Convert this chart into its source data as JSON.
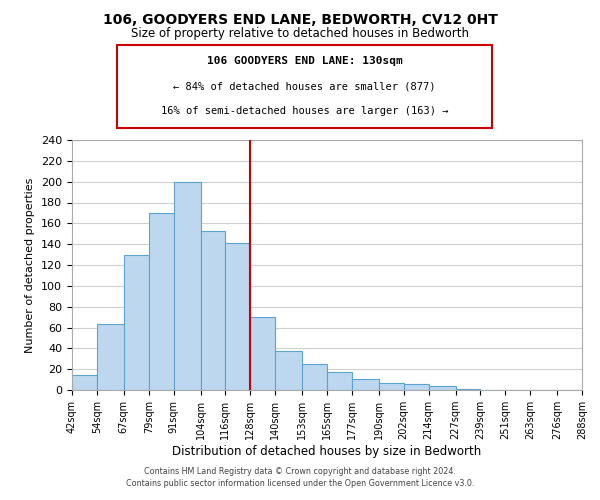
{
  "title": "106, GOODYERS END LANE, BEDWORTH, CV12 0HT",
  "subtitle": "Size of property relative to detached houses in Bedworth",
  "xlabel": "Distribution of detached houses by size in Bedworth",
  "ylabel": "Number of detached properties",
  "bar_edges": [
    42,
    54,
    67,
    79,
    91,
    104,
    116,
    128,
    140,
    153,
    165,
    177,
    190,
    202,
    214,
    227,
    239,
    251,
    263,
    276,
    288
  ],
  "bar_heights": [
    14,
    63,
    130,
    170,
    200,
    153,
    141,
    70,
    37,
    25,
    17,
    11,
    7,
    6,
    4,
    1,
    0,
    0,
    0,
    0
  ],
  "bar_color": "#bdd7ee",
  "bar_edge_color": "#5ba3d0",
  "grid_color": "#d0d0d0",
  "ref_line_x": 128,
  "ref_line_color": "#cc0000",
  "ylim": [
    0,
    240
  ],
  "yticks": [
    0,
    20,
    40,
    60,
    80,
    100,
    120,
    140,
    160,
    180,
    200,
    220,
    240
  ],
  "tick_labels": [
    "42sqm",
    "54sqm",
    "67sqm",
    "79sqm",
    "91sqm",
    "104sqm",
    "116sqm",
    "128sqm",
    "140sqm",
    "153sqm",
    "165sqm",
    "177sqm",
    "190sqm",
    "202sqm",
    "214sqm",
    "227sqm",
    "239sqm",
    "251sqm",
    "263sqm",
    "276sqm",
    "288sqm"
  ],
  "annotation_title": "106 GOODYERS END LANE: 130sqm",
  "annotation_line1": "← 84% of detached houses are smaller (877)",
  "annotation_line2": "16% of semi-detached houses are larger (163) →",
  "annotation_box_color": "#ffffff",
  "annotation_box_edge": "#cc0000",
  "footer1": "Contains HM Land Registry data © Crown copyright and database right 2024.",
  "footer2": "Contains public sector information licensed under the Open Government Licence v3.0.",
  "background_color": "#ffffff"
}
